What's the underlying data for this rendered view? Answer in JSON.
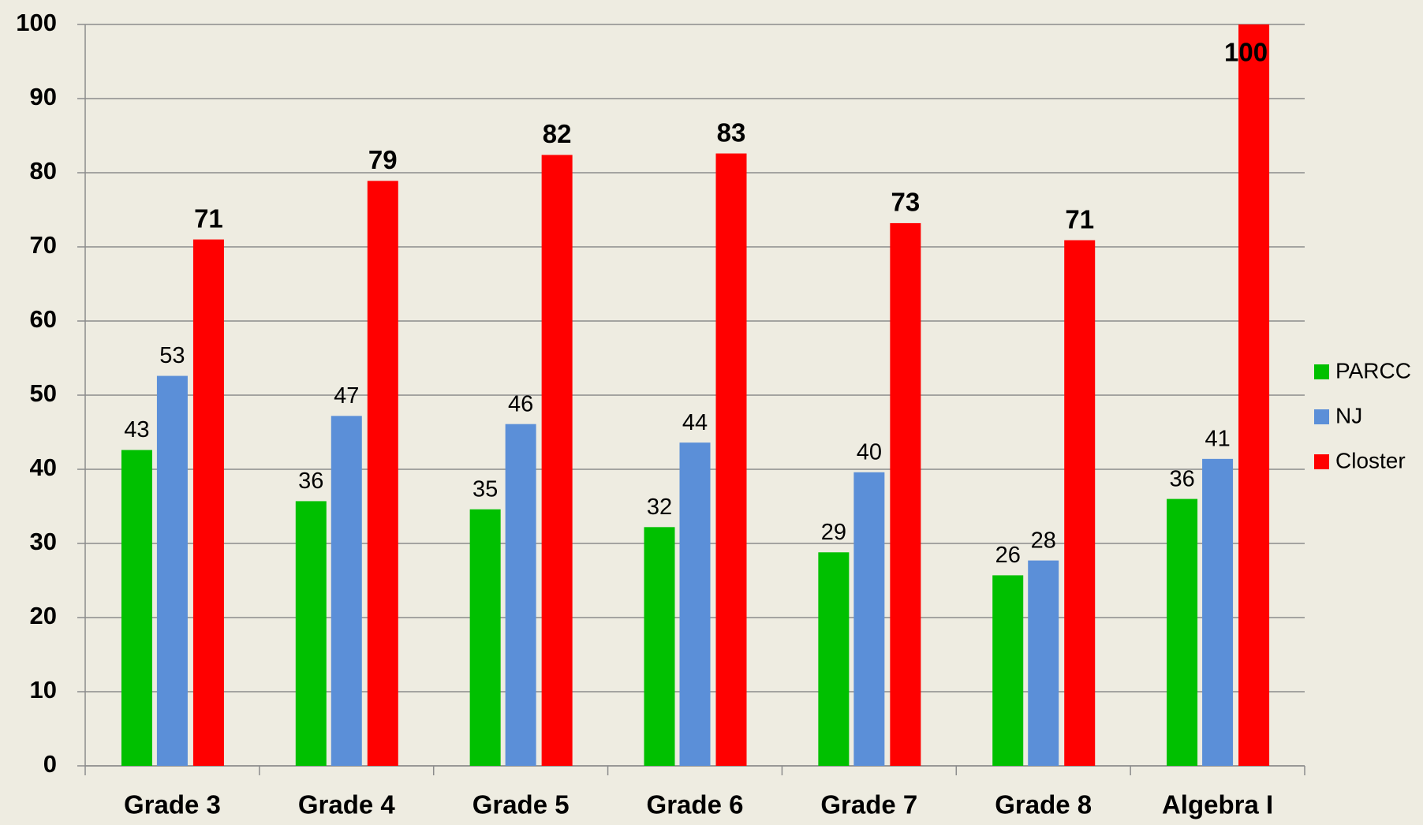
{
  "chart_data": {
    "type": "bar",
    "categories": [
      "Grade 3",
      "Grade 4",
      "Grade 5",
      "Grade 6",
      "Grade 7",
      "Grade 8",
      "Algebra I"
    ],
    "series": [
      {
        "name": "PARCC",
        "color": "#00c000",
        "values": [
          42.6,
          35.7,
          34.6,
          32.2,
          28.8,
          25.7,
          36.0
        ],
        "value_labels": [
          "43",
          "36",
          "35",
          "32",
          "29",
          "26",
          "36"
        ]
      },
      {
        "name": "NJ",
        "color": "#5b8fd8",
        "values": [
          52.6,
          47.2,
          46.1,
          43.6,
          39.6,
          27.7,
          41.4
        ],
        "value_labels": [
          "53",
          "47",
          "46",
          "44",
          "40",
          "28",
          "41"
        ]
      },
      {
        "name": "Closter",
        "color": "#ff0000",
        "values": [
          71.0,
          78.9,
          82.4,
          82.6,
          73.2,
          70.9,
          100
        ],
        "value_labels": [
          "71",
          "79",
          "82",
          "83",
          "73",
          "71",
          "100"
        ]
      }
    ],
    "ylim": [
      0,
      100
    ],
    "yticks": [
      0,
      10,
      20,
      30,
      40,
      50,
      60,
      70,
      80,
      90,
      100
    ],
    "grid": true,
    "legend": "right"
  }
}
